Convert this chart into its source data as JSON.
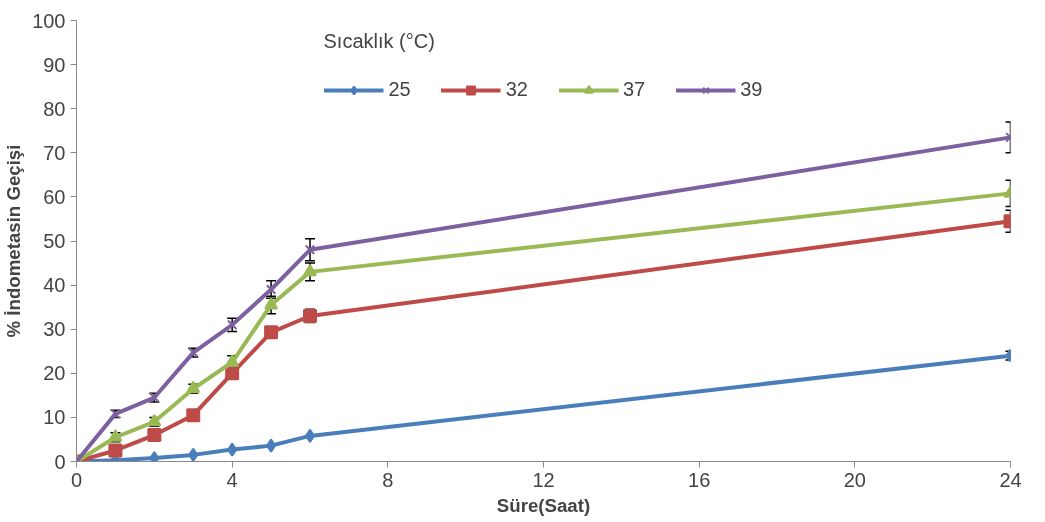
{
  "chart_data": {
    "type": "line",
    "xlabel": "Süre(Saat)",
    "ylabel": "% İndometasin Geçişi",
    "legend_title": "Sıcaklık (°C)",
    "legend": "top",
    "grid": false,
    "x": [
      0,
      1,
      2,
      3,
      4,
      5,
      6,
      24
    ],
    "xlim": [
      0,
      24
    ],
    "xticks": [
      0,
      4,
      8,
      12,
      16,
      20,
      24
    ],
    "ylim": [
      0,
      100
    ],
    "yticks": [
      0,
      10,
      20,
      30,
      40,
      50,
      60,
      70,
      80,
      90,
      100
    ],
    "series": [
      {
        "name": "25",
        "color": "#4a7ebb",
        "marker": "diamond",
        "values": [
          0,
          0.3,
          0.8,
          1.5,
          2.7,
          3.6,
          5.8,
          24
        ],
        "errors": [
          null,
          null,
          null,
          null,
          null,
          null,
          null,
          1
        ]
      },
      {
        "name": "32",
        "color": "#be4b48",
        "marker": "square",
        "values": [
          0,
          2.5,
          6,
          10.5,
          20,
          29.3,
          33,
          54.5
        ],
        "errors": [
          null,
          null,
          null,
          null,
          null,
          null,
          1.5,
          2.5
        ]
      },
      {
        "name": "37",
        "color": "#98b954",
        "marker": "triangle",
        "values": [
          0,
          5.5,
          9,
          16.5,
          22.5,
          35.5,
          43,
          60.8
        ],
        "errors": [
          null,
          1,
          1,
          1,
          1.5,
          2,
          2,
          3
        ]
      },
      {
        "name": "39",
        "color": "#7d60a0",
        "marker": "cross",
        "values": [
          0,
          10.8,
          14.5,
          24.7,
          31,
          39,
          48,
          73.5
        ],
        "errors": [
          null,
          0.8,
          1,
          1,
          1.5,
          2,
          2.5,
          3.5
        ]
      }
    ]
  }
}
